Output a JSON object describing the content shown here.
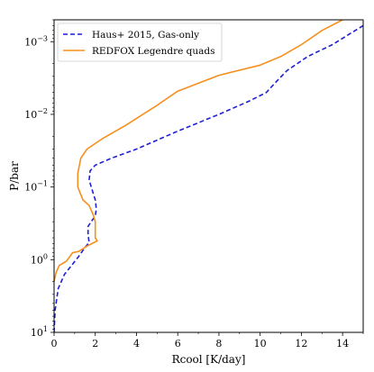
{
  "chart_data": {
    "type": "line",
    "title": "",
    "xlabel": "Rcool [K/day]",
    "ylabel": "P/bar",
    "xlim": [
      0,
      15
    ],
    "ylim": [
      10,
      0.0005
    ],
    "yscale": "log",
    "y_inverted": true,
    "grid": false,
    "legend_position": "top-left",
    "xticks": [
      0,
      2,
      4,
      6,
      8,
      10,
      12,
      14
    ],
    "xtick_labels": [
      "0",
      "2",
      "4",
      "6",
      "8",
      "10",
      "12",
      "14"
    ],
    "yticks": [
      10,
      1,
      0.1,
      0.01,
      0.001
    ],
    "ytick_labels": [
      {
        "base": "10",
        "exp": "1"
      },
      {
        "base": "10",
        "exp": "0"
      },
      {
        "base": "10",
        "exp": "−1"
      },
      {
        "base": "10",
        "exp": "−2"
      },
      {
        "base": "10",
        "exp": "−3"
      }
    ],
    "series": [
      {
        "name": "Haus+ 2015, Gas-only",
        "color": "#1f1fd6",
        "style": "dashed",
        "points": [
          [
            0.0,
            10.0
          ],
          [
            0.05,
            5.0
          ],
          [
            0.2,
            2.5
          ],
          [
            0.5,
            1.6
          ],
          [
            0.8,
            1.25
          ],
          [
            1.2,
            0.9
          ],
          [
            1.5,
            0.68
          ],
          [
            1.7,
            0.58
          ],
          [
            1.65,
            0.45
          ],
          [
            1.65,
            0.35
          ],
          [
            1.8,
            0.3
          ],
          [
            2.0,
            0.25
          ],
          [
            2.05,
            0.2
          ],
          [
            2.0,
            0.15
          ],
          [
            1.85,
            0.11
          ],
          [
            1.7,
            0.08
          ],
          [
            1.75,
            0.06
          ],
          [
            2.0,
            0.05
          ],
          [
            2.8,
            0.04
          ],
          [
            4.0,
            0.03
          ],
          [
            6.0,
            0.017
          ],
          [
            8.0,
            0.01
          ],
          [
            9.5,
            0.0065
          ],
          [
            10.3,
            0.005
          ],
          [
            10.8,
            0.0035
          ],
          [
            11.3,
            0.0025
          ],
          [
            12.3,
            0.0016
          ],
          [
            13.5,
            0.0011
          ],
          [
            15.0,
            0.0006
          ]
        ]
      },
      {
        "name": "REDFOX Legendre quads",
        "color": "#f5901e",
        "style": "solid",
        "points": [
          [
            0.0,
            2.0
          ],
          [
            0.1,
            1.5
          ],
          [
            0.25,
            1.2
          ],
          [
            0.6,
            1.05
          ],
          [
            0.9,
            0.8
          ],
          [
            1.2,
            0.77
          ],
          [
            1.6,
            0.65
          ],
          [
            2.1,
            0.55
          ],
          [
            2.0,
            0.5
          ],
          [
            2.0,
            0.3
          ],
          [
            1.9,
            0.24
          ],
          [
            1.7,
            0.18
          ],
          [
            1.4,
            0.15
          ],
          [
            1.15,
            0.1
          ],
          [
            1.15,
            0.065
          ],
          [
            1.3,
            0.04
          ],
          [
            1.6,
            0.03
          ],
          [
            2.3,
            0.022
          ],
          [
            3.5,
            0.014
          ],
          [
            5.0,
            0.0075
          ],
          [
            6.0,
            0.0048
          ],
          [
            8.0,
            0.0029
          ],
          [
            10.0,
            0.0021
          ],
          [
            11.0,
            0.0016
          ],
          [
            12.0,
            0.0011
          ],
          [
            13.0,
            0.0007
          ],
          [
            14.0,
            0.0005
          ]
        ]
      }
    ]
  }
}
